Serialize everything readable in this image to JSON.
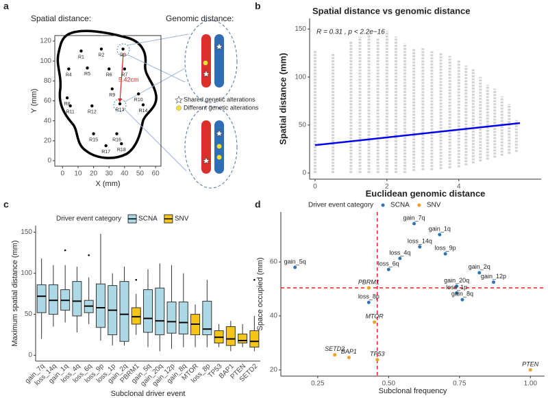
{
  "chart_data": [
    {
      "panel_label": "a",
      "type": "scatter",
      "annotations": [
        "Spatial distance:",
        "Genomic distance:",
        "5.42cm",
        "Shared genetic alterations",
        "Different genetic alterations"
      ],
      "labels": [
        "R1",
        "R2",
        "R3",
        "R4",
        "R5",
        "R6",
        "R7",
        "R8",
        "R9",
        "R10",
        "R11",
        "R12",
        "R13",
        "R14",
        "R15",
        "R16",
        "R17",
        "R18"
      ],
      "x": [
        12,
        25,
        39,
        4,
        16,
        30,
        40,
        3,
        32,
        49,
        5,
        19,
        37,
        52,
        20,
        35,
        28,
        38
      ],
      "y": [
        110,
        112,
        112,
        92,
        93,
        92,
        92,
        63,
        72,
        67,
        55,
        55,
        57,
        56,
        27,
        27,
        15,
        17
      ],
      "color": "#000000",
      "xlabel": "X (mm)",
      "ylabel": "Y (mm)",
      "xlim": [
        -5,
        63.5
      ],
      "ylim": [
        -5.5,
        125.5
      ],
      "xticks": [
        0,
        10,
        20,
        30,
        40,
        50,
        60
      ],
      "yticks": [
        0,
        20,
        40,
        60,
        80,
        100,
        120
      ]
    },
    {
      "panel_label": "b",
      "type": "strip",
      "title": "Spatial distance vs genomic distance",
      "annotation": "R = 0.31 , p < 2.2e−16",
      "xlabel": "Euclidean genomic distance",
      "ylabel": "Spatial distance (mm)",
      "x": [
        0,
        0.5,
        1,
        1.25,
        1.5,
        1.75,
        2,
        2.25,
        2.5,
        2.75,
        3,
        3.25,
        3.5,
        3.75,
        4,
        4.2,
        4.4,
        4.6,
        4.8,
        5,
        5.2,
        5.4,
        5.6
      ],
      "low": [
        0,
        0,
        0,
        0,
        0,
        0,
        0,
        0,
        0,
        2,
        3,
        3,
        4,
        5,
        6,
        8,
        10,
        12,
        14,
        16,
        18,
        20,
        22
      ],
      "high": [
        128,
        125,
        138,
        142,
        145,
        140,
        148,
        142,
        135,
        130,
        130,
        128,
        125,
        122,
        118,
        112,
        108,
        100,
        92,
        88,
        80,
        72,
        55
      ],
      "color": "#d3d3d3",
      "trend": {
        "x": [
          0,
          5.7
        ],
        "y": [
          29,
          52
        ],
        "color": "#0000ee"
      },
      "xlim": [
        -0.15,
        6.29
      ],
      "ylim": [
        -6.4,
        161
      ],
      "xticks": [
        0,
        2,
        4
      ],
      "yticks": [
        0,
        50,
        100,
        150
      ]
    },
    {
      "panel_label": "c",
      "type": "box",
      "legend_title": "Driver event category",
      "legend": [
        {
          "name": "SCNA",
          "color": "#add8e6"
        },
        {
          "name": "SNV",
          "color": "#f5c518"
        }
      ],
      "categories": [
        "gain_7q",
        "loss_14q",
        "gain_1q",
        "loss_4q",
        "loss_6q",
        "loss_9p",
        "loss_1p",
        "gain_2q",
        "PBRM1",
        "gain_5q",
        "gain_20q",
        "gain_12p",
        "gain_8q",
        "MTOR",
        "loss_8p",
        "TP53",
        "BAP1",
        "PTEN",
        "SETD2"
      ],
      "colors": [
        "#add8e6",
        "#add8e6",
        "#add8e6",
        "#add8e6",
        "#add8e6",
        "#add8e6",
        "#add8e6",
        "#add8e6",
        "#f5c518",
        "#add8e6",
        "#add8e6",
        "#add8e6",
        "#add8e6",
        "#f5c518",
        "#add8e6",
        "#f5c518",
        "#f5c518",
        "#f5c518",
        "#f5c518"
      ],
      "whisker_low": [
        20,
        35,
        40,
        28,
        38,
        18,
        12,
        12,
        25,
        10,
        5,
        8,
        10,
        10,
        10,
        10,
        5,
        10,
        5
      ],
      "q1": [
        52,
        50,
        55,
        48,
        52,
        34,
        25,
        17,
        38,
        28,
        25,
        27,
        26,
        25,
        25,
        15,
        12,
        15,
        10
      ],
      "median": [
        72,
        67,
        67,
        66,
        60,
        58,
        55,
        50,
        47,
        45,
        42,
        41,
        40,
        38,
        32,
        22,
        20,
        18,
        17
      ],
      "q3": [
        86,
        86,
        80,
        90,
        67,
        87,
        85,
        90,
        58,
        80,
        82,
        65,
        65,
        50,
        66,
        30,
        35,
        26,
        30
      ],
      "whisker_high": [
        118,
        110,
        110,
        108,
        95,
        148,
        100,
        108,
        75,
        105,
        112,
        110,
        100,
        62,
        92,
        38,
        42,
        38,
        48
      ],
      "outliers": [
        [],
        [],
        [
          128
        ],
        [],
        [
          122
        ],
        [],
        [],
        [],
        [
          92
        ],
        [],
        [],
        [],
        [],
        [],
        [],
        [],
        [],
        [],
        [
          92
        ]
      ],
      "xlabel": "Subclonal driver event",
      "ylabel": "Maximum spatial distance (mm)",
      "ylim": [
        -7,
        158
      ],
      "yticks": [
        0,
        50,
        100,
        150
      ]
    },
    {
      "panel_label": "d",
      "type": "scatter",
      "legend_title": "Driver event category",
      "series": [
        {
          "name": "SCNA",
          "color": "#2e75b6",
          "font_style": "normal",
          "labels": [
            "gain_7q",
            "gain_1q",
            "loss_14q",
            "loss_9p",
            "loss_4q",
            "loss_6q",
            "gain_5q",
            "gain_2q",
            "gain_12p",
            "gain_20q",
            "loss_1p",
            "gain_8q",
            "loss_8p"
          ],
          "x": [
            0.59,
            0.68,
            0.61,
            0.7,
            0.54,
            0.5,
            0.17,
            0.82,
            0.87,
            0.74,
            0.74,
            0.76,
            0.43
          ],
          "y": [
            74.2,
            70.1,
            65.6,
            63,
            61.3,
            57.2,
            58,
            56,
            52.5,
            51,
            48.5,
            46,
            45
          ]
        },
        {
          "name": "SNV",
          "color": "#f0a020",
          "font_style": "italic",
          "labels": [
            "PBRM1",
            "MTOR",
            "SETD2",
            "BAP1",
            "TP53",
            "PTEN"
          ],
          "x": [
            0.43,
            0.45,
            0.31,
            0.36,
            0.46,
            1
          ],
          "y": [
            50.4,
            37.7,
            25.6,
            24.6,
            23.8,
            20
          ]
        }
      ],
      "reference_lines": {
        "x": 0.46,
        "y": 50.4,
        "color": "#ff0000"
      },
      "xlabel": "Subclonal frequency",
      "ylabel": "Space occupied (mm)",
      "xlim": [
        0.12,
        1.05
      ],
      "ylim": [
        17.7,
        78.5
      ],
      "xticks": [
        {
          "value": 0.25,
          "label": "0.25"
        },
        {
          "value": 0.5,
          "label": "0.50"
        },
        {
          "value": 0.75,
          "label": "0.75"
        },
        {
          "value": 1,
          "label": "1.00"
        }
      ],
      "yticks": [
        20,
        40,
        60
      ]
    }
  ]
}
